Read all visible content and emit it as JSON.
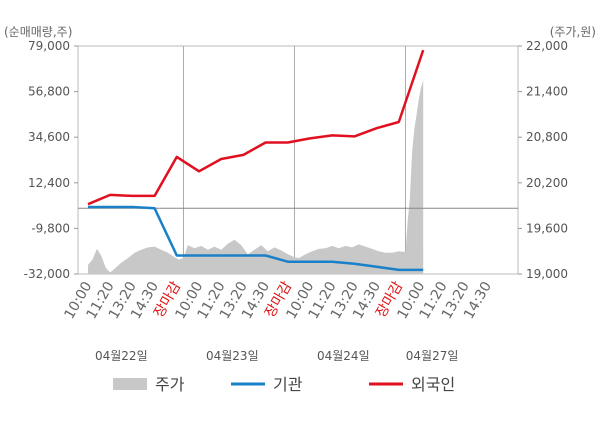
{
  "chart_data": {
    "type": "line",
    "left_axis_unit": "(순매매량,주)",
    "right_axis_unit": "(주가,원)",
    "left_ylim": [
      -32000,
      79000
    ],
    "left_ticks": [
      "79,000",
      "56,800",
      "34,600",
      "12,400",
      "-9,800",
      "-32,000"
    ],
    "right_ylim": [
      19000,
      22000
    ],
    "right_ticks": [
      "22,000",
      "21,400",
      "20,800",
      "20,200",
      "19,600",
      "19,000"
    ],
    "x_ticks": [
      {
        "label": "10:00",
        "pos": 0,
        "red": false
      },
      {
        "label": "11:20",
        "pos": 1,
        "red": false
      },
      {
        "label": "13:20",
        "pos": 2,
        "red": false
      },
      {
        "label": "14:30",
        "pos": 3,
        "red": false
      },
      {
        "label": "장마감",
        "pos": 4,
        "red": true
      },
      {
        "label": "10:00",
        "pos": 5,
        "red": false
      },
      {
        "label": "11:20",
        "pos": 6,
        "red": false
      },
      {
        "label": "13:20",
        "pos": 7,
        "red": false
      },
      {
        "label": "14:30",
        "pos": 8,
        "red": false
      },
      {
        "label": "장마감",
        "pos": 9,
        "red": true
      },
      {
        "label": "10:00",
        "pos": 10,
        "red": false
      },
      {
        "label": "11:20",
        "pos": 11,
        "red": false
      },
      {
        "label": "13:20",
        "pos": 12,
        "red": false
      },
      {
        "label": "14:30",
        "pos": 13,
        "red": false
      },
      {
        "label": "장마감",
        "pos": 14,
        "red": true
      },
      {
        "label": "10:00",
        "pos": 15,
        "red": false
      },
      {
        "label": "11:20",
        "pos": 16,
        "red": false
      },
      {
        "label": "13:20",
        "pos": 17,
        "red": false
      },
      {
        "label": "14:30",
        "pos": 18,
        "red": false
      }
    ],
    "day_labels": [
      {
        "label": "04월22일",
        "pos": 1.5
      },
      {
        "label": "04월23일",
        "pos": 6.5
      },
      {
        "label": "04월24일",
        "pos": 11.5
      },
      {
        "label": "04월27일",
        "pos": 15.5
      }
    ],
    "day_separators": [
      4.3,
      9.3,
      14.3
    ],
    "zero_line_value": 0,
    "series": [
      {
        "name": "주가",
        "axis": "right",
        "kind": "area",
        "color": "#c8c8c8",
        "points": [
          [
            0.0,
            19120
          ],
          [
            0.2,
            19190
          ],
          [
            0.4,
            19330
          ],
          [
            0.6,
            19240
          ],
          [
            0.8,
            19080
          ],
          [
            1.0,
            19020
          ],
          [
            1.2,
            19070
          ],
          [
            1.5,
            19150
          ],
          [
            1.8,
            19210
          ],
          [
            2.1,
            19280
          ],
          [
            2.4,
            19320
          ],
          [
            2.7,
            19350
          ],
          [
            3.0,
            19360
          ],
          [
            3.3,
            19320
          ],
          [
            3.6,
            19280
          ],
          [
            3.9,
            19220
          ],
          [
            4.1,
            19190
          ],
          [
            4.3,
            19210
          ],
          [
            4.5,
            19380
          ],
          [
            4.8,
            19340
          ],
          [
            5.1,
            19370
          ],
          [
            5.4,
            19320
          ],
          [
            5.7,
            19360
          ],
          [
            6.0,
            19320
          ],
          [
            6.3,
            19400
          ],
          [
            6.6,
            19450
          ],
          [
            6.9,
            19380
          ],
          [
            7.2,
            19260
          ],
          [
            7.5,
            19320
          ],
          [
            7.8,
            19380
          ],
          [
            8.1,
            19300
          ],
          [
            8.4,
            19350
          ],
          [
            8.7,
            19310
          ],
          [
            9.0,
            19260
          ],
          [
            9.3,
            19220
          ],
          [
            9.5,
            19210
          ],
          [
            9.8,
            19260
          ],
          [
            10.1,
            19300
          ],
          [
            10.4,
            19330
          ],
          [
            10.7,
            19340
          ],
          [
            11.0,
            19370
          ],
          [
            11.3,
            19340
          ],
          [
            11.6,
            19370
          ],
          [
            11.9,
            19350
          ],
          [
            12.2,
            19390
          ],
          [
            12.5,
            19360
          ],
          [
            12.8,
            19330
          ],
          [
            13.1,
            19300
          ],
          [
            13.4,
            19280
          ],
          [
            13.7,
            19280
          ],
          [
            14.0,
            19300
          ],
          [
            14.3,
            19290
          ],
          [
            14.4,
            19700
          ],
          [
            14.5,
            20000
          ],
          [
            14.6,
            20600
          ],
          [
            14.7,
            20900
          ],
          [
            14.8,
            21100
          ],
          [
            14.9,
            21300
          ],
          [
            15.0,
            21450
          ],
          [
            15.1,
            21550
          ]
        ]
      },
      {
        "name": "기관",
        "axis": "left",
        "kind": "line",
        "color": "#1a80c8",
        "points": [
          [
            0.0,
            600
          ],
          [
            1.0,
            600
          ],
          [
            2.0,
            600
          ],
          [
            3.0,
            0
          ],
          [
            4.0,
            -23000
          ],
          [
            5.0,
            -23000
          ],
          [
            6.0,
            -23000
          ],
          [
            7.0,
            -23000
          ],
          [
            8.0,
            -23000
          ],
          [
            9.0,
            -26000
          ],
          [
            10.0,
            -26000
          ],
          [
            11.0,
            -26000
          ],
          [
            12.0,
            -27000
          ],
          [
            13.0,
            -28500
          ],
          [
            14.0,
            -30000
          ],
          [
            15.1,
            -30000
          ]
        ]
      },
      {
        "name": "외국인",
        "axis": "left",
        "kind": "line",
        "color": "#e01020",
        "points": [
          [
            0.0,
            2000
          ],
          [
            1.0,
            6500
          ],
          [
            2.0,
            6000
          ],
          [
            3.0,
            6000
          ],
          [
            4.0,
            25000
          ],
          [
            5.0,
            18000
          ],
          [
            6.0,
            24000
          ],
          [
            7.0,
            26000
          ],
          [
            8.0,
            32000
          ],
          [
            9.0,
            32000
          ],
          [
            10.0,
            34000
          ],
          [
            11.0,
            35500
          ],
          [
            12.0,
            35000
          ],
          [
            13.0,
            39000
          ],
          [
            14.0,
            42000
          ],
          [
            15.1,
            77000
          ]
        ]
      }
    ],
    "legend": [
      {
        "name": "주가",
        "marker": "area",
        "color": "#c8c8c8"
      },
      {
        "name": "기관",
        "marker": "line",
        "color": "#1a80c8"
      },
      {
        "name": "외국인",
        "marker": "line",
        "color": "#e01020"
      }
    ],
    "legend_position": "bottom"
  }
}
